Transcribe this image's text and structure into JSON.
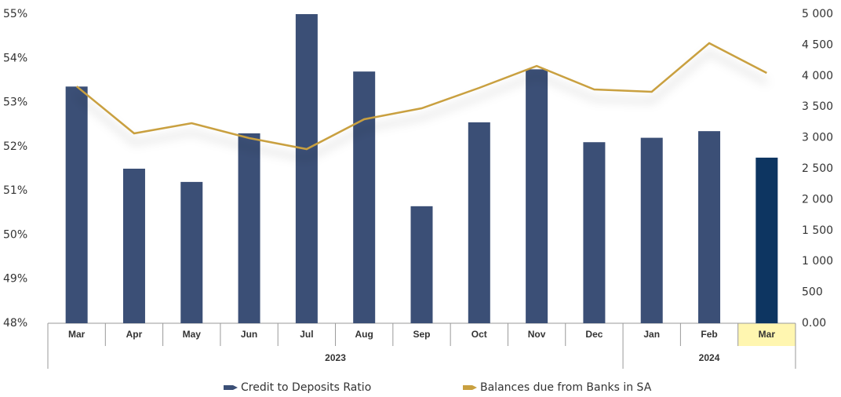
{
  "chart_data": {
    "type": "bar_line",
    "categories": [
      "Mar",
      "Apr",
      "May",
      "Jun",
      "Jul",
      "Aug",
      "Sep",
      "Oct",
      "Nov",
      "Dec",
      "Jan",
      "Feb",
      "Mar"
    ],
    "groups": [
      {
        "label": "2023",
        "span": 10
      },
      {
        "label": "2024",
        "span": 3
      }
    ],
    "highlight": 12,
    "highlight_color": "#fff6b0",
    "series": [
      {
        "name": "Credit to Deposits Ratio",
        "type": "bar",
        "color": "#3b4f76",
        "highlight_color": "#0d3561",
        "values": [
          53.36,
          51.5,
          51.2,
          52.3,
          55.0,
          53.7,
          50.65,
          52.55,
          53.75,
          52.1,
          52.2,
          52.35,
          51.75
        ]
      },
      {
        "name": "Balances due from Banks in SA",
        "type": "line",
        "color": "#c9a040",
        "axis": "y2",
        "values": [
          3832,
          3071,
          3236,
          2995,
          2817,
          3300,
          3477,
          3807,
          4162,
          3782,
          3744,
          4530,
          4048
        ]
      }
    ],
    "ylim": [
      48,
      55
    ],
    "yticks": [
      {
        "value": 48,
        "label": "48%"
      },
      {
        "value": 49,
        "label": "49%"
      },
      {
        "value": 50,
        "label": "50%"
      },
      {
        "value": 51,
        "label": "51%"
      },
      {
        "value": 52,
        "label": "52%"
      },
      {
        "value": 53,
        "label": "53%"
      },
      {
        "value": 54,
        "label": "54%"
      },
      {
        "value": 55,
        "label": "55%"
      }
    ],
    "y2lim": [
      0,
      5000
    ],
    "y2ticks": [
      {
        "value": 0,
        "label": "0.00"
      },
      500,
      {
        "value": 1000,
        "label": "1 000"
      },
      {
        "value": 1500,
        "label": "1 500"
      },
      {
        "value": 2000,
        "label": "2 000"
      },
      {
        "value": 2500,
        "label": "2 500"
      },
      {
        "value": 3000,
        "label": "3 000"
      },
      {
        "value": 3500,
        "label": "3 500"
      },
      {
        "value": 4000,
        "label": "4 000"
      },
      {
        "value": 4500,
        "label": "4 500"
      },
      {
        "value": 5000,
        "label": "5 000"
      }
    ],
    "grid": false,
    "legend": "bottom"
  }
}
